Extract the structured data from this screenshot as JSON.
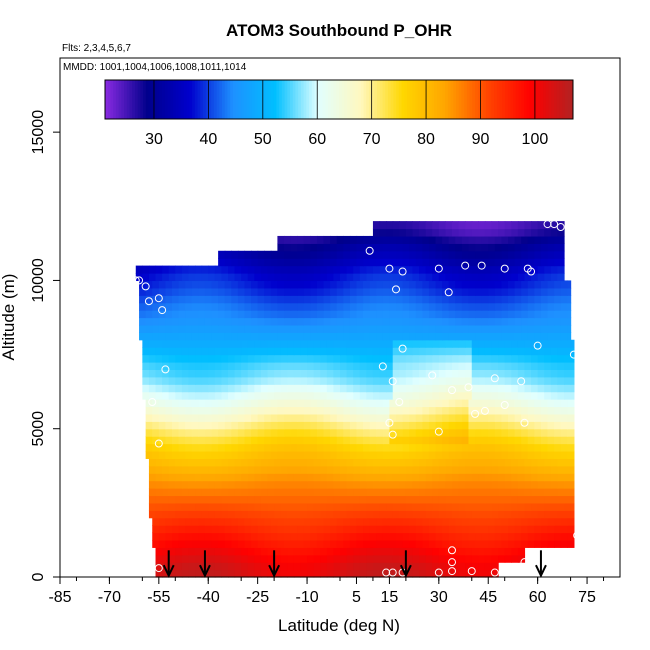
{
  "chart_data": {
    "type": "heatmap",
    "title": "ATOM3 Southbound P_OHR",
    "flights_label": "Flts: 2,3,4,5,6,7",
    "dates_label": "MMDD: 1001,1004,1006,1008,1011,1014",
    "xlabel": "Latitude (deg N)",
    "ylabel": "Altitude (m)",
    "xlim": [
      -85,
      85
    ],
    "ylim": [
      0,
      17500
    ],
    "x_ticks": [
      -85,
      -70,
      -55,
      -40,
      -25,
      -10,
      5,
      15,
      30,
      45,
      60,
      75
    ],
    "y_ticks": [
      0,
      5000,
      10000,
      15000
    ],
    "colorbar": {
      "range": [
        21,
        107
      ],
      "ticks": [
        30,
        40,
        50,
        60,
        70,
        80,
        90,
        100
      ],
      "colors": [
        "#8a2be2",
        "#00008b",
        "#0000cd",
        "#1e90ff",
        "#00bfff",
        "#e0ffff",
        "#fff8c0",
        "#ffd700",
        "#ffa500",
        "#ff4500",
        "#ff0000",
        "#b22222"
      ]
    },
    "profile": {
      "altitudes": [
        250,
        750,
        1250,
        1750,
        2250,
        2750,
        3250,
        3750,
        4250,
        4750,
        5250,
        5750,
        6250,
        6750,
        7250,
        7750,
        8250,
        8750,
        9250,
        9750,
        10250,
        10750,
        11250,
        11750
      ],
      "values": [
        103,
        100,
        97,
        94,
        91,
        88,
        85,
        81,
        78,
        74,
        69,
        64,
        60,
        56,
        54,
        50,
        47,
        44,
        42,
        39,
        37,
        33,
        30,
        25
      ]
    },
    "coverage": [
      {
        "lat_min": -56,
        "lat_max": 48,
        "alt_min": 0,
        "alt_max": 500
      },
      {
        "lat_min": -56,
        "lat_max": 56,
        "alt_min": 500,
        "alt_max": 1000
      },
      {
        "lat_min": -57,
        "lat_max": 71,
        "alt_min": 1000,
        "alt_max": 2000
      },
      {
        "lat_min": -58,
        "lat_max": 71,
        "alt_min": 2000,
        "alt_max": 3000
      },
      {
        "lat_min": -58,
        "lat_max": 71,
        "alt_min": 3000,
        "alt_max": 4000
      },
      {
        "lat_min": -59,
        "lat_max": 71,
        "alt_min": 4000,
        "alt_max": 5000
      },
      {
        "lat_min": -59,
        "lat_max": 71,
        "alt_min": 5000,
        "alt_max": 6000
      },
      {
        "lat_min": -60,
        "lat_max": 71,
        "alt_min": 6000,
        "alt_max": 7000
      },
      {
        "lat_min": -60,
        "lat_max": 71,
        "alt_min": 7000,
        "alt_max": 8000
      },
      {
        "lat_min": -61,
        "lat_max": 70,
        "alt_min": 8000,
        "alt_max": 9000
      },
      {
        "lat_min": -61,
        "lat_max": 70,
        "alt_min": 9000,
        "alt_max": 10000
      },
      {
        "lat_min": -62,
        "lat_max": 68,
        "alt_min": 10000,
        "alt_max": 10500
      },
      {
        "lat_min": -37,
        "lat_max": 68,
        "alt_min": 10500,
        "alt_max": 11000
      },
      {
        "lat_min": -19,
        "lat_max": 68,
        "alt_min": 11000,
        "alt_max": 11500
      },
      {
        "lat_min": 10,
        "lat_max": 68,
        "alt_min": 11500,
        "alt_max": 12000
      }
    ],
    "transition_points": [
      {
        "lat": -62,
        "alt": 10000
      },
      {
        "lat": -61,
        "alt": 10000
      },
      {
        "lat": -59,
        "alt": 9800
      },
      {
        "lat": -58,
        "alt": 9300
      },
      {
        "lat": -55,
        "alt": 9400
      },
      {
        "lat": -54,
        "alt": 9000
      },
      {
        "lat": -53,
        "alt": 7000
      },
      {
        "lat": -57,
        "alt": 5900
      },
      {
        "lat": -55,
        "alt": 4500
      },
      {
        "lat": -55,
        "alt": 300
      },
      {
        "lat": 9,
        "alt": 11000
      },
      {
        "lat": 15,
        "alt": 10400
      },
      {
        "lat": 19,
        "alt": 10300
      },
      {
        "lat": 17,
        "alt": 9700
      },
      {
        "lat": 30,
        "alt": 10400
      },
      {
        "lat": 33,
        "alt": 9600
      },
      {
        "lat": 38,
        "alt": 10500
      },
      {
        "lat": 43,
        "alt": 10500
      },
      {
        "lat": 50,
        "alt": 10400
      },
      {
        "lat": 57,
        "alt": 10400
      },
      {
        "lat": 58,
        "alt": 10300
      },
      {
        "lat": 63,
        "alt": 11900
      },
      {
        "lat": 65,
        "alt": 11900
      },
      {
        "lat": 67,
        "alt": 11800
      },
      {
        "lat": 19,
        "alt": 7700
      },
      {
        "lat": 13,
        "alt": 7100
      },
      {
        "lat": 16,
        "alt": 6600
      },
      {
        "lat": 18,
        "alt": 5900
      },
      {
        "lat": 15,
        "alt": 5200
      },
      {
        "lat": 16,
        "alt": 4800
      },
      {
        "lat": 28,
        "alt": 6800
      },
      {
        "lat": 34,
        "alt": 6300
      },
      {
        "lat": 39,
        "alt": 6400
      },
      {
        "lat": 41,
        "alt": 5500
      },
      {
        "lat": 44,
        "alt": 5600
      },
      {
        "lat": 47,
        "alt": 6700
      },
      {
        "lat": 50,
        "alt": 5800
      },
      {
        "lat": 55,
        "alt": 6600
      },
      {
        "lat": 56,
        "alt": 5200
      },
      {
        "lat": 60,
        "alt": 7800
      },
      {
        "lat": 71,
        "alt": 7500
      },
      {
        "lat": 30,
        "alt": 4900
      },
      {
        "lat": 72,
        "alt": 1400
      },
      {
        "lat": 34,
        "alt": 900
      },
      {
        "lat": 34,
        "alt": 500
      },
      {
        "lat": 34,
        "alt": 200
      },
      {
        "lat": 14,
        "alt": 150
      },
      {
        "lat": 16,
        "alt": 150
      },
      {
        "lat": 19,
        "alt": 150
      },
      {
        "lat": 30,
        "alt": 150
      },
      {
        "lat": 40,
        "alt": 200
      },
      {
        "lat": 47,
        "alt": 150
      },
      {
        "lat": 56,
        "alt": 500
      }
    ],
    "marker_arrows": [
      -52,
      -41,
      -20,
      20,
      61
    ]
  }
}
